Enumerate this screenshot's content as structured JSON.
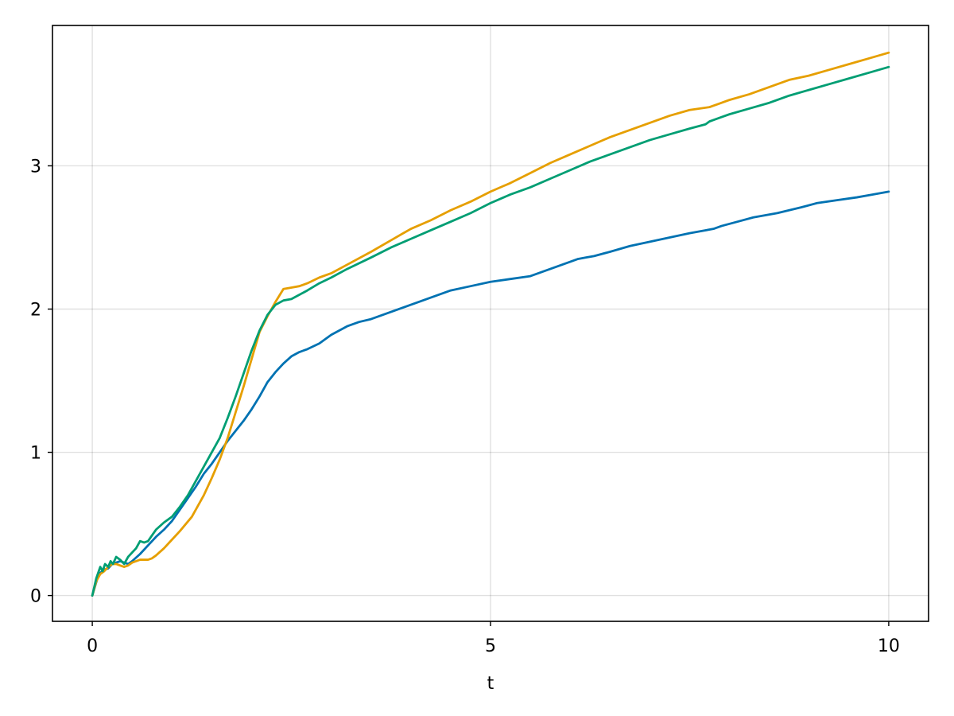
{
  "chart_data": {
    "type": "line",
    "title": "",
    "xlabel": "t",
    "ylabel": "",
    "xlim": [
      -0.5,
      10.5
    ],
    "ylim": [
      -0.18,
      3.98
    ],
    "xticks": [
      0,
      5,
      10
    ],
    "yticks": [
      0,
      1,
      2,
      3
    ],
    "xtick_labels": [
      "0",
      "5",
      "10"
    ],
    "ytick_labels": [
      "0",
      "1",
      "2",
      "3"
    ],
    "grid": true,
    "legend": "none",
    "series": [
      {
        "color": "#0072b2",
        "x": [
          0,
          0.08,
          0.15,
          0.2,
          0.25,
          0.3,
          0.35,
          0.4,
          0.45,
          0.5,
          0.6,
          0.7,
          0.8,
          0.9,
          1.0,
          1.1,
          1.2,
          1.3,
          1.4,
          1.5,
          1.6,
          1.7,
          1.8,
          1.9,
          2.0,
          2.1,
          2.2,
          2.3,
          2.4,
          2.5,
          2.6,
          2.7,
          2.85,
          3.0,
          3.2,
          3.35,
          3.5,
          3.75,
          4.0,
          4.25,
          4.5,
          4.75,
          5.0,
          5.25,
          5.5,
          5.75,
          6.0,
          6.1,
          6.2,
          6.3,
          6.5,
          6.75,
          7.0,
          7.25,
          7.5,
          7.7,
          7.8,
          7.9,
          8.1,
          8.3,
          8.6,
          8.9,
          9.1,
          9.35,
          9.6,
          9.8,
          10.0
        ],
        "y": [
          0.0,
          0.15,
          0.18,
          0.19,
          0.22,
          0.23,
          0.24,
          0.23,
          0.22,
          0.24,
          0.29,
          0.35,
          0.41,
          0.46,
          0.52,
          0.6,
          0.68,
          0.76,
          0.85,
          0.92,
          1.0,
          1.08,
          1.15,
          1.22,
          1.3,
          1.39,
          1.49,
          1.56,
          1.62,
          1.67,
          1.7,
          1.72,
          1.76,
          1.82,
          1.88,
          1.91,
          1.93,
          1.98,
          2.03,
          2.08,
          2.13,
          2.16,
          2.19,
          2.21,
          2.23,
          2.28,
          2.33,
          2.35,
          2.36,
          2.37,
          2.4,
          2.44,
          2.47,
          2.5,
          2.53,
          2.55,
          2.56,
          2.58,
          2.61,
          2.64,
          2.67,
          2.71,
          2.74,
          2.76,
          2.78,
          2.8,
          2.82
        ]
      },
      {
        "color": "#e69f00",
        "x": [
          0,
          0.05,
          0.1,
          0.15,
          0.2,
          0.25,
          0.3,
          0.35,
          0.4,
          0.45,
          0.5,
          0.6,
          0.7,
          0.75,
          0.8,
          0.9,
          1.0,
          1.1,
          1.25,
          1.4,
          1.5,
          1.6,
          1.7,
          1.8,
          1.9,
          2.0,
          2.1,
          2.2,
          2.3,
          2.4,
          2.5,
          2.6,
          2.7,
          2.85,
          3.0,
          3.2,
          3.5,
          3.75,
          4.0,
          4.25,
          4.5,
          4.75,
          5.0,
          5.25,
          5.5,
          5.75,
          6.0,
          6.25,
          6.5,
          6.75,
          7.0,
          7.25,
          7.5,
          7.75,
          7.8,
          7.85,
          8.0,
          8.25,
          8.5,
          8.75,
          9.0,
          9.25,
          9.5,
          9.75,
          10.0
        ],
        "y": [
          0.0,
          0.1,
          0.15,
          0.17,
          0.2,
          0.22,
          0.22,
          0.21,
          0.2,
          0.21,
          0.23,
          0.25,
          0.25,
          0.26,
          0.28,
          0.33,
          0.39,
          0.45,
          0.55,
          0.7,
          0.82,
          0.95,
          1.1,
          1.28,
          1.46,
          1.65,
          1.84,
          1.95,
          2.05,
          2.14,
          2.15,
          2.16,
          2.18,
          2.22,
          2.25,
          2.31,
          2.4,
          2.48,
          2.56,
          2.62,
          2.69,
          2.75,
          2.82,
          2.88,
          2.95,
          3.02,
          3.08,
          3.14,
          3.2,
          3.25,
          3.3,
          3.35,
          3.39,
          3.41,
          3.42,
          3.43,
          3.46,
          3.5,
          3.55,
          3.6,
          3.63,
          3.67,
          3.71,
          3.75,
          3.79
        ]
      },
      {
        "color": "#009e73",
        "x": [
          0,
          0.05,
          0.1,
          0.13,
          0.16,
          0.2,
          0.23,
          0.26,
          0.3,
          0.35,
          0.4,
          0.45,
          0.5,
          0.55,
          0.6,
          0.65,
          0.7,
          0.75,
          0.8,
          0.9,
          1.0,
          1.1,
          1.2,
          1.3,
          1.4,
          1.5,
          1.6,
          1.7,
          1.8,
          1.9,
          2.0,
          2.1,
          2.2,
          2.3,
          2.4,
          2.5,
          2.6,
          2.7,
          2.85,
          3.0,
          3.2,
          3.5,
          3.75,
          4.0,
          4.25,
          4.5,
          4.75,
          5.0,
          5.25,
          5.5,
          5.75,
          6.0,
          6.25,
          6.5,
          6.75,
          7.0,
          7.25,
          7.5,
          7.7,
          7.75,
          7.8,
          7.9,
          8.0,
          8.25,
          8.5,
          8.75,
          9.0,
          9.25,
          9.5,
          9.75,
          10.0
        ],
        "y": [
          0.0,
          0.12,
          0.2,
          0.17,
          0.22,
          0.2,
          0.24,
          0.22,
          0.27,
          0.25,
          0.22,
          0.27,
          0.3,
          0.33,
          0.38,
          0.37,
          0.38,
          0.42,
          0.46,
          0.51,
          0.55,
          0.62,
          0.7,
          0.8,
          0.9,
          1.0,
          1.1,
          1.24,
          1.39,
          1.55,
          1.71,
          1.85,
          1.96,
          2.03,
          2.06,
          2.07,
          2.1,
          2.13,
          2.18,
          2.22,
          2.28,
          2.36,
          2.43,
          2.49,
          2.55,
          2.61,
          2.67,
          2.74,
          2.8,
          2.85,
          2.91,
          2.97,
          3.03,
          3.08,
          3.13,
          3.18,
          3.22,
          3.26,
          3.29,
          3.31,
          3.32,
          3.34,
          3.36,
          3.4,
          3.44,
          3.49,
          3.53,
          3.57,
          3.61,
          3.65,
          3.69
        ]
      }
    ]
  }
}
